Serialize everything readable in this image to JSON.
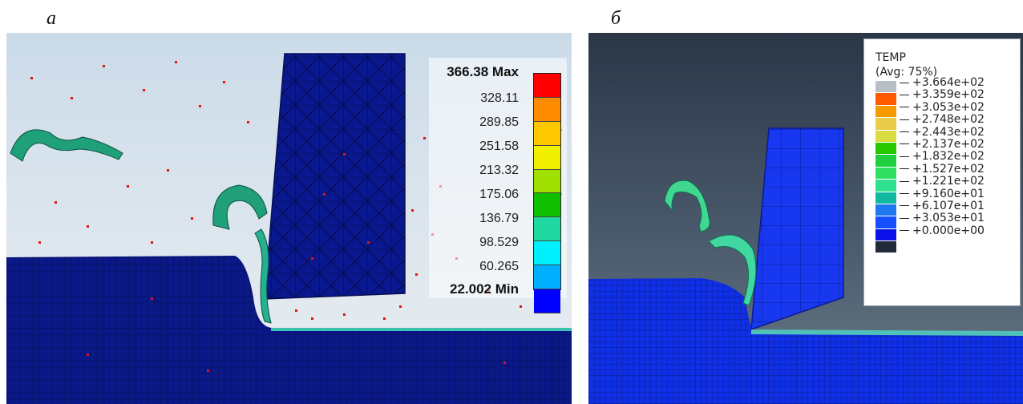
{
  "panels": {
    "a": {
      "label": "а"
    },
    "b": {
      "label": "б"
    }
  },
  "legend_a": {
    "max_label": "366.38 Max",
    "values": [
      "328.11",
      "289.85",
      "251.58",
      "213.32",
      "175.06",
      "136.79",
      "98.529",
      "60.265"
    ],
    "min_label": "22.002 Min",
    "colors": [
      "#ff0000",
      "#ff8c00",
      "#ffc800",
      "#f0f000",
      "#a0e000",
      "#10c000",
      "#20d8a0",
      "#00f0ff",
      "#00b0ff",
      "#0000ff"
    ]
  },
  "legend_b": {
    "title": "TEMP",
    "subtitle": "(Avg: 75%)",
    "values": [
      "+3.664e+02",
      "+3.359e+02",
      "+3.053e+02",
      "+2.748e+02",
      "+2.443e+02",
      "+2.137e+02",
      "+1.832e+02",
      "+1.527e+02",
      "+1.221e+02",
      "+9.160e+01",
      "+6.107e+01",
      "+3.053e+01",
      "+0.000e+00"
    ],
    "colors": [
      "#b8bfc6",
      "#ff5a00",
      "#f59a00",
      "#e9cd4a",
      "#d8dc40",
      "#28c800",
      "#20d040",
      "#30e060",
      "#30e090",
      "#10b8a0",
      "#1e78f0",
      "#1450ff",
      "#0c10e8",
      "#202a38"
    ]
  }
}
